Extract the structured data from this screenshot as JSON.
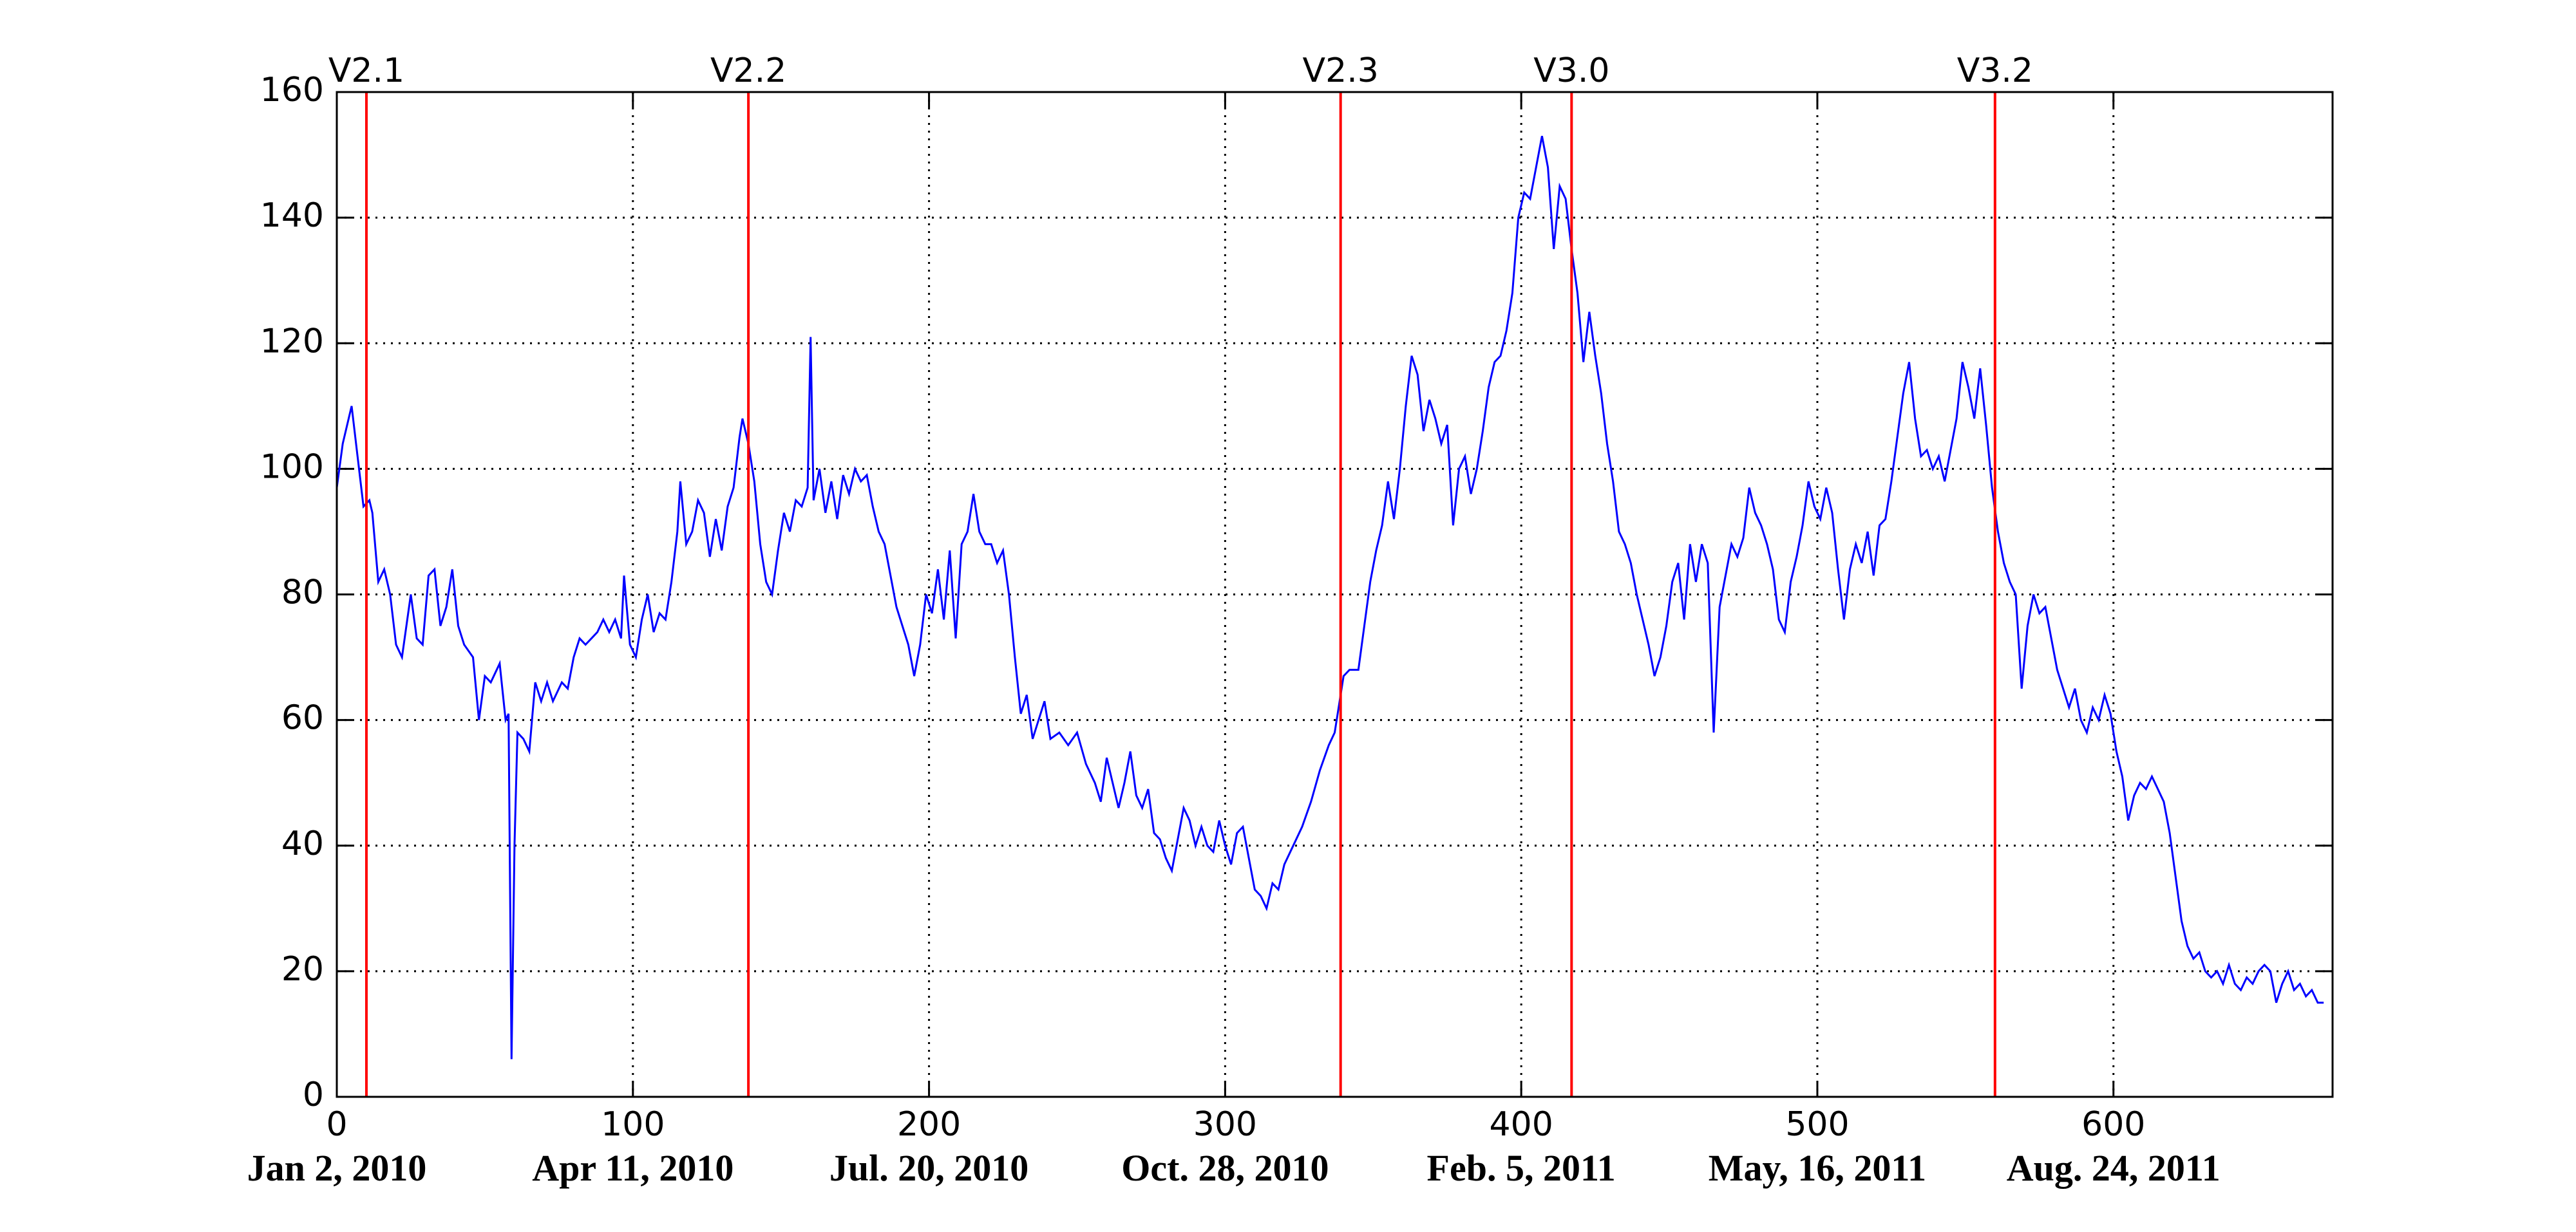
{
  "chart_data": {
    "type": "line",
    "x": [
      0,
      2,
      5,
      7,
      9,
      11,
      12,
      14,
      16,
      18,
      20,
      22,
      25,
      27,
      29,
      31,
      33,
      35,
      37,
      39,
      41,
      43,
      46,
      48,
      50,
      52,
      55,
      57,
      58,
      59,
      60,
      61,
      63,
      65,
      67,
      69,
      71,
      73,
      76,
      78,
      80,
      82,
      84,
      86,
      88,
      90,
      92,
      94,
      96,
      97,
      99,
      101,
      103,
      105,
      107,
      109,
      111,
      113,
      115,
      116,
      118,
      120,
      122,
      124,
      126,
      128,
      130,
      132,
      134,
      136,
      137,
      139,
      141,
      143,
      145,
      147,
      149,
      151,
      153,
      155,
      157,
      159,
      160,
      161,
      163,
      165,
      167,
      169,
      171,
      173,
      175,
      177,
      179,
      181,
      183,
      185,
      187,
      189,
      191,
      193,
      195,
      197,
      199,
      201,
      203,
      205,
      207,
      209,
      211,
      213,
      215,
      217,
      219,
      221,
      223,
      225,
      227,
      229,
      231,
      233,
      235,
      237,
      239,
      241,
      244,
      247,
      250,
      253,
      256,
      258,
      260,
      262,
      264,
      266,
      268,
      270,
      272,
      274,
      276,
      278,
      280,
      282,
      284,
      286,
      288,
      290,
      292,
      294,
      296,
      298,
      300,
      302,
      304,
      306,
      308,
      310,
      312,
      314,
      316,
      318,
      320,
      323,
      326,
      329,
      332,
      335,
      337,
      339,
      340,
      342,
      345,
      347,
      349,
      351,
      353,
      355,
      357,
      359,
      361,
      363,
      365,
      367,
      369,
      371,
      373,
      375,
      377,
      379,
      381,
      383,
      385,
      387,
      389,
      391,
      393,
      395,
      397,
      399,
      401,
      403,
      405,
      407,
      409,
      411,
      413,
      415,
      417,
      419,
      421,
      423,
      425,
      427,
      429,
      431,
      433,
      435,
      437,
      439,
      441,
      443,
      445,
      447,
      449,
      451,
      453,
      455,
      457,
      459,
      461,
      463,
      465,
      467,
      469,
      471,
      473,
      475,
      477,
      479,
      481,
      483,
      485,
      487,
      489,
      491,
      493,
      495,
      497,
      499,
      501,
      503,
      505,
      507,
      509,
      511,
      513,
      515,
      517,
      519,
      521,
      523,
      525,
      527,
      529,
      531,
      533,
      535,
      537,
      539,
      541,
      543,
      545,
      547,
      549,
      551,
      553,
      555,
      557,
      559,
      561,
      563,
      565,
      567,
      569,
      571,
      573,
      575,
      577,
      579,
      581,
      583,
      585,
      587,
      589,
      591,
      593,
      595,
      597,
      599,
      601,
      603,
      605,
      607,
      609,
      611,
      613,
      615,
      617,
      619,
      621,
      623,
      625,
      627,
      629,
      631,
      633,
      635,
      637,
      639,
      641,
      643,
      645,
      647,
      649,
      651,
      653,
      655,
      657,
      659,
      661,
      663,
      665,
      667,
      669,
      671
    ],
    "series": [
      {
        "color": "#0000ff",
        "values": [
          97,
          104,
          110,
          102,
          94,
          95,
          93,
          82,
          84,
          80,
          72,
          70,
          80,
          73,
          72,
          83,
          84,
          75,
          78,
          84,
          75,
          72,
          70,
          60,
          67,
          66,
          69,
          60,
          61,
          6,
          40,
          58,
          57,
          55,
          66,
          63,
          66,
          63,
          66,
          65,
          70,
          73,
          72,
          73,
          74,
          76,
          74,
          76,
          73,
          83,
          72,
          70,
          76,
          80,
          74,
          77,
          76,
          82,
          90,
          98,
          88,
          90,
          95,
          93,
          86,
          92,
          87,
          94,
          97,
          105,
          108,
          104,
          98,
          88,
          82,
          80,
          87,
          93,
          90,
          95,
          94,
          97,
          121,
          95,
          100,
          93,
          98,
          92,
          99,
          96,
          100,
          98,
          99,
          94,
          90,
          88,
          83,
          78,
          75,
          72,
          67,
          72,
          80,
          77,
          84,
          76,
          87,
          73,
          88,
          90,
          96,
          90,
          88,
          88,
          85,
          87,
          80,
          70,
          61,
          64,
          57,
          60,
          63,
          57,
          58,
          56,
          58,
          53,
          50,
          47,
          54,
          50,
          46,
          50,
          55,
          48,
          46,
          49,
          42,
          41,
          38,
          36,
          41,
          46,
          44,
          40,
          43,
          40,
          39,
          44,
          40,
          37,
          42,
          43,
          38,
          33,
          32,
          30,
          34,
          33,
          37,
          40,
          43,
          47,
          52,
          56,
          58,
          64,
          67,
          68,
          68,
          75,
          82,
          87,
          91,
          98,
          92,
          100,
          110,
          118,
          115,
          106,
          111,
          108,
          104,
          107,
          91,
          100,
          102,
          96,
          100,
          106,
          113,
          117,
          118,
          122,
          128,
          140,
          144,
          143,
          148,
          153,
          148,
          135,
          145,
          143,
          135,
          128,
          117,
          125,
          118,
          112,
          104,
          98,
          90,
          88,
          85,
          80,
          76,
          72,
          67,
          70,
          75,
          82,
          85,
          76,
          88,
          82,
          88,
          85,
          58,
          78,
          83,
          88,
          86,
          89,
          97,
          93,
          91,
          88,
          84,
          76,
          74,
          82,
          86,
          91,
          98,
          94,
          92,
          97,
          93,
          84,
          76,
          84,
          88,
          85,
          90,
          83,
          91,
          92,
          98,
          105,
          112,
          117,
          108,
          102,
          103,
          100,
          102,
          98,
          103,
          108,
          117,
          113,
          108,
          116,
          107,
          97,
          90,
          85,
          82,
          80,
          65,
          75,
          80,
          77,
          78,
          73,
          68,
          65,
          62,
          65,
          60,
          58,
          62,
          60,
          64,
          61,
          55,
          51,
          44,
          48,
          50,
          49,
          51,
          49,
          47,
          42,
          35,
          28,
          24,
          22,
          23,
          20,
          19,
          20,
          18,
          21,
          18,
          17,
          19,
          18,
          20,
          21,
          20,
          15,
          18,
          20,
          17,
          18,
          16,
          17,
          15,
          15
        ]
      }
    ],
    "xlim": [
      0,
      674
    ],
    "ylim": [
      0,
      160
    ],
    "xticks": [
      0,
      100,
      200,
      300,
      400,
      500,
      600
    ],
    "yticks": [
      0,
      20,
      40,
      60,
      80,
      100,
      120,
      140,
      160
    ],
    "date_labels": [
      "Jan 2, 2010",
      "Apr 11, 2010",
      "Jul. 20, 2010",
      "Oct. 28, 2010",
      "Feb. 5, 2011",
      "May, 16, 2011",
      "Aug. 24, 2011"
    ],
    "versions": [
      {
        "label": "V2.1",
        "x": 10
      },
      {
        "label": "V2.2",
        "x": 139
      },
      {
        "label": "V2.3",
        "x": 339
      },
      {
        "label": "V3.0",
        "x": 417
      },
      {
        "label": "V3.2",
        "x": 560
      }
    ],
    "version_color": "#ff0000",
    "grid": true
  }
}
